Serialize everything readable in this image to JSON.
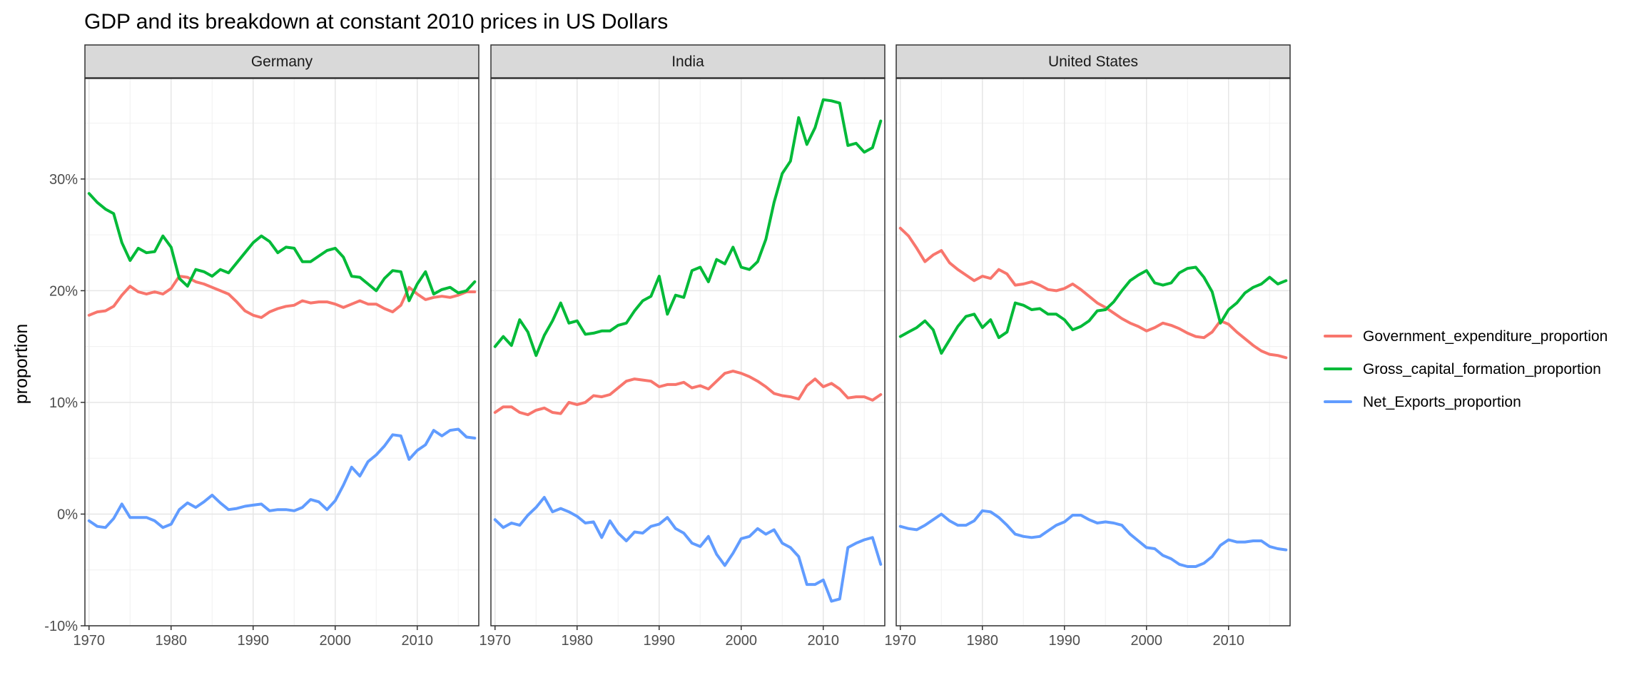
{
  "chart_data": {
    "type": "line",
    "title": "GDP and its breakdown at constant 2010 prices in US Dollars",
    "xlabel": "",
    "ylabel": "proportion",
    "x_ticks": [
      1970,
      1980,
      1990,
      2000,
      2010
    ],
    "x_tick_labels": [
      "1970",
      "1980",
      "1990",
      "2000",
      "2010"
    ],
    "y_ticks": [
      -10,
      0,
      10,
      20,
      30
    ],
    "y_tick_labels": [
      "-10%",
      "0%",
      "10%",
      "20%",
      "30%"
    ],
    "xlim": [
      1969.5,
      2017.5
    ],
    "ylim": [
      -10,
      39
    ],
    "grid": true,
    "legend_position": "right",
    "series_meta": [
      {
        "key": "gov",
        "name": "Government_expenditure_proportion",
        "color": "#F8766D"
      },
      {
        "key": "gcf",
        "name": "Gross_capital_formation_proportion",
        "color": "#00BA38"
      },
      {
        "key": "nx",
        "name": "Net_Exports_proportion",
        "color": "#619CFF"
      }
    ],
    "x": [
      1970,
      1971,
      1972,
      1973,
      1974,
      1975,
      1976,
      1977,
      1978,
      1979,
      1980,
      1981,
      1982,
      1983,
      1984,
      1985,
      1986,
      1987,
      1988,
      1989,
      1990,
      1991,
      1992,
      1993,
      1994,
      1995,
      1996,
      1997,
      1998,
      1999,
      2000,
      2001,
      2002,
      2003,
      2004,
      2005,
      2006,
      2007,
      2008,
      2009,
      2010,
      2011,
      2012,
      2013,
      2014,
      2015,
      2016,
      2017
    ],
    "panels": [
      {
        "label": "Germany",
        "series": {
          "gov": [
            17.8,
            18.1,
            18.2,
            18.6,
            19.6,
            20.4,
            19.9,
            19.7,
            19.9,
            19.7,
            20.2,
            21.3,
            21.2,
            20.8,
            20.6,
            20.3,
            20.0,
            19.7,
            19.0,
            18.2,
            17.8,
            17.6,
            18.1,
            18.4,
            18.6,
            18.7,
            19.1,
            18.9,
            19.0,
            19.0,
            18.8,
            18.5,
            18.8,
            19.1,
            18.8,
            18.8,
            18.4,
            18.1,
            18.7,
            20.3,
            19.7,
            19.2,
            19.4,
            19.5,
            19.4,
            19.6,
            19.9,
            19.9
          ],
          "gcf": [
            28.7,
            27.9,
            27.3,
            26.9,
            24.3,
            22.7,
            23.8,
            23.4,
            23.5,
            24.9,
            23.9,
            21.1,
            20.4,
            21.9,
            21.7,
            21.3,
            21.9,
            21.6,
            22.5,
            23.4,
            24.3,
            24.9,
            24.4,
            23.4,
            23.9,
            23.8,
            22.6,
            22.6,
            23.1,
            23.6,
            23.8,
            23.0,
            21.3,
            21.2,
            20.6,
            20.0,
            21.1,
            21.8,
            21.7,
            19.1,
            20.6,
            21.7,
            19.7,
            20.1,
            20.3,
            19.8,
            20.0,
            20.8
          ],
          "nx": [
            -0.6,
            -1.1,
            -1.2,
            -0.4,
            0.9,
            -0.3,
            -0.3,
            -0.3,
            -0.6,
            -1.2,
            -0.9,
            0.4,
            1.0,
            0.6,
            1.1,
            1.7,
            1.0,
            0.4,
            0.5,
            0.7,
            0.8,
            0.9,
            0.3,
            0.4,
            0.4,
            0.3,
            0.6,
            1.3,
            1.1,
            0.4,
            1.2,
            2.6,
            4.2,
            3.4,
            4.7,
            5.3,
            6.1,
            7.1,
            7.0,
            4.9,
            5.7,
            6.2,
            7.5,
            7.0,
            7.5,
            7.6,
            6.9,
            6.8
          ]
        }
      },
      {
        "label": "India",
        "series": {
          "gov": [
            9.1,
            9.6,
            9.6,
            9.1,
            8.9,
            9.3,
            9.5,
            9.1,
            9.0,
            10.0,
            9.8,
            10.0,
            10.6,
            10.5,
            10.7,
            11.3,
            11.9,
            12.1,
            12.0,
            11.9,
            11.4,
            11.6,
            11.6,
            11.8,
            11.3,
            11.5,
            11.2,
            11.9,
            12.6,
            12.8,
            12.6,
            12.3,
            11.9,
            11.4,
            10.8,
            10.6,
            10.5,
            10.3,
            11.5,
            12.1,
            11.4,
            11.7,
            11.2,
            10.4,
            10.5,
            10.5,
            10.2,
            10.7
          ],
          "gcf": [
            15.0,
            15.9,
            15.1,
            17.4,
            16.3,
            14.2,
            16.0,
            17.3,
            18.9,
            17.1,
            17.3,
            16.1,
            16.2,
            16.4,
            16.4,
            16.9,
            17.1,
            18.2,
            19.1,
            19.5,
            21.3,
            17.9,
            19.6,
            19.4,
            21.8,
            22.1,
            20.8,
            22.8,
            22.4,
            23.9,
            22.1,
            21.9,
            22.6,
            24.6,
            27.9,
            30.5,
            31.6,
            35.5,
            33.1,
            34.6,
            37.1,
            37.0,
            36.8,
            33.0,
            33.2,
            32.4,
            32.8,
            35.2
          ]
        }
      },
      {
        "label": "United States",
        "series": {
          "gov": [
            25.6,
            24.9,
            23.8,
            22.6,
            23.2,
            23.6,
            22.5,
            21.9,
            21.4,
            20.9,
            21.3,
            21.1,
            21.9,
            21.5,
            20.5,
            20.6,
            20.8,
            20.5,
            20.1,
            20.0,
            20.2,
            20.6,
            20.1,
            19.5,
            18.9,
            18.5,
            18.0,
            17.5,
            17.1,
            16.8,
            16.4,
            16.7,
            17.1,
            16.9,
            16.6,
            16.2,
            15.9,
            15.8,
            16.3,
            17.3,
            17.0,
            16.3,
            15.7,
            15.1,
            14.6,
            14.3,
            14.2,
            14.0
          ],
          "gcf": [
            15.9,
            16.3,
            16.7,
            17.3,
            16.5,
            14.4,
            15.6,
            16.8,
            17.7,
            17.9,
            16.7,
            17.4,
            15.8,
            16.3,
            18.9,
            18.7,
            18.3,
            18.4,
            17.9,
            17.9,
            17.4,
            16.5,
            16.8,
            17.3,
            18.2,
            18.3,
            19.0,
            20.0,
            20.9,
            21.4,
            21.8,
            20.7,
            20.5,
            20.7,
            21.6,
            22.0,
            22.1,
            21.2,
            19.9,
            17.1,
            18.3,
            18.9,
            19.8,
            20.3,
            20.6,
            21.2,
            20.6,
            20.9
          ],
          "nx": [
            -1.1,
            -1.3,
            -1.4,
            -1.0,
            -0.5,
            0.0,
            -0.6,
            -1.0,
            -1.0,
            -0.6,
            0.3,
            0.2,
            -0.3,
            -1.0,
            -1.8,
            -2.0,
            -2.1,
            -2.0,
            -1.5,
            -1.0,
            -0.7,
            -0.1,
            -0.1,
            -0.5,
            -0.8,
            -0.7,
            -0.8,
            -1.0,
            -1.8,
            -2.4,
            -3.0,
            -3.1,
            -3.7,
            -4.0,
            -4.5,
            -4.7,
            -4.7,
            -4.4,
            -3.8,
            -2.8,
            -2.3,
            -2.5,
            -2.5,
            -2.4,
            -2.4,
            -2.9,
            -3.1,
            -3.2
          ]
        }
      }
    ]
  }
}
